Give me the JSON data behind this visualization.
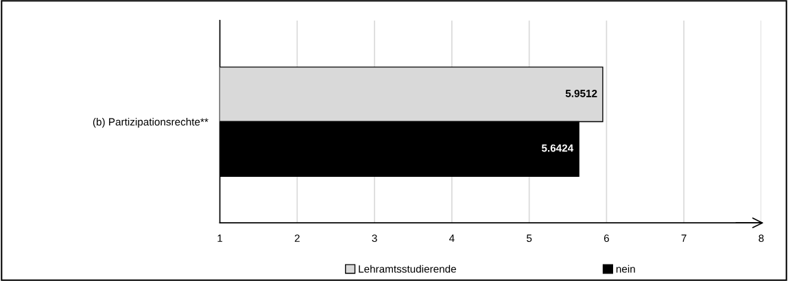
{
  "chart_data": {
    "type": "bar",
    "orientation": "horizontal",
    "categories": [
      "(b) Partizipationsrechte**"
    ],
    "series": [
      {
        "name": "Lehramtsstudierende",
        "color": "#d9d9d9",
        "values": [
          5.9512
        ]
      },
      {
        "name": "nein",
        "color": "#000000",
        "values": [
          5.6424
        ]
      }
    ],
    "xlim": [
      1,
      8
    ],
    "xticks": [
      1,
      2,
      3,
      4,
      5,
      6,
      7,
      8
    ],
    "grid": "x",
    "legend": "bottom",
    "data_labels": true
  }
}
